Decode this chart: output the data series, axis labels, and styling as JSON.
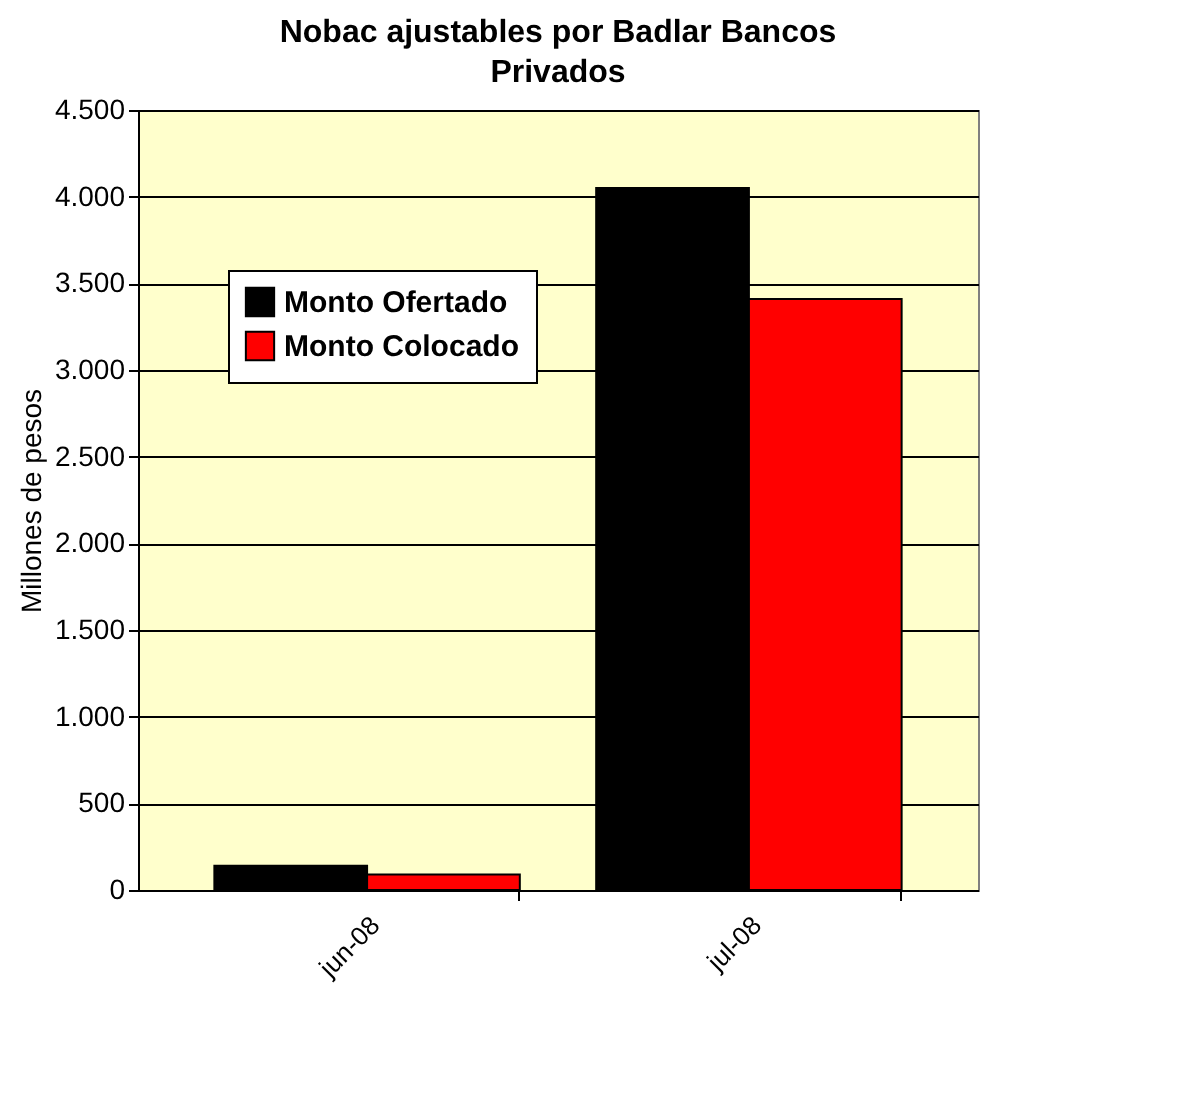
{
  "chart_data": {
    "type": "bar",
    "title": "Nobac ajustables por Badlar Bancos Privados",
    "ylabel": "Millones de pesos",
    "categories": [
      "jun-08",
      "jul-08"
    ],
    "series": [
      {
        "name": "Monto Ofertado",
        "color": "#000000",
        "values": [
          140,
          4050
        ]
      },
      {
        "name": "Monto Colocado",
        "color": "#ff0000",
        "values": [
          90,
          3410
        ]
      }
    ],
    "ylim": [
      0,
      4500
    ],
    "yticks": [
      0,
      500,
      {
        "value": 1000,
        "label": "1.000"
      },
      {
        "value": 1500,
        "label": "1.500"
      },
      {
        "value": 2000,
        "label": "2.000"
      },
      {
        "value": 2500,
        "label": "2.500"
      },
      {
        "value": 3000,
        "label": "3.000"
      },
      {
        "value": 3500,
        "label": "3.500"
      },
      {
        "value": 4000,
        "label": "4.000"
      },
      {
        "value": 4500,
        "label": "4.500"
      }
    ],
    "grid": "y",
    "legend": "top left"
  }
}
